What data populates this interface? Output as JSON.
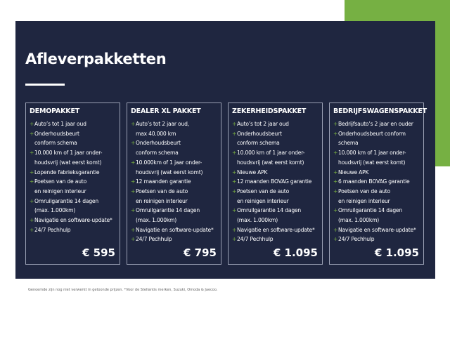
{
  "colors": {
    "accent": "#76b043",
    "panel": "#1f2640"
  },
  "title": "Afleverpakketten",
  "packages": [
    {
      "name": "DEMOPAKKET",
      "price": "€ 595",
      "items": [
        [
          "Auto’s tot 1 jaar oud"
        ],
        [
          "Onderhoudsbeurt",
          "conform schema"
        ],
        [
          "10.000 km of 1 jaar onder-",
          "houdsvrij (wat eerst komt)"
        ],
        [
          "Lopende fabrieksgarantie"
        ],
        [
          "Poetsen van de auto",
          "en reinigen interieur"
        ],
        [
          "Omruilgarantie 14 dagen",
          "(max. 1.000km)"
        ],
        [
          "Navigatie en software-update*"
        ],
        [
          "24/7 Pechhulp"
        ]
      ]
    },
    {
      "name": "DEALER XL PAKKET",
      "price": "€ 795",
      "items": [
        [
          "Auto’s tot 2 jaar oud,",
          "max 40.000 km"
        ],
        [
          "Onderhoudsbeurt",
          "conform schema"
        ],
        [
          "10.000km of 1 jaar onder-",
          "houdsvrij (wat eerst komt)"
        ],
        [
          "12 maanden garantie"
        ],
        [
          "Poetsen van de auto",
          "en reinigen interieur"
        ],
        [
          "Omruilgarantie 14 dagen",
          "(max. 1.000km)"
        ],
        [
          "Navigatie en software-update*"
        ],
        [
          "24/7 Pechhulp"
        ]
      ]
    },
    {
      "name": "ZEKERHEIDSPAKKET",
      "price": "€ 1.095",
      "items": [
        [
          "Auto’s tot 2 jaar oud"
        ],
        [
          "Onderhoudsbeurt",
          "conform schema"
        ],
        [
          "10.000 km of 1 jaar onder-",
          "houdsvrij (wat eerst komt)"
        ],
        [
          "Nieuwe APK"
        ],
        [
          "12 maanden BOVAG garantie"
        ],
        [
          "Poetsen van de auto",
          "en reinigen interieur"
        ],
        [
          "Omruilgarantie 14 dagen",
          "(max. 1.000km)"
        ],
        [
          "Navigatie en software-update*"
        ],
        [
          "24/7 Pechhulp"
        ]
      ]
    },
    {
      "name": "BEDRIJFSWAGENSPAKKET",
      "price": "€ 1.095",
      "items": [
        [
          "Bedrijfsauto’s 2 jaar en ouder"
        ],
        [
          "Onderhoudsbeurt conform",
          "schema"
        ],
        [
          "10.000 km of 1 jaar onder-",
          "houdsvrij (wat eerst komt)"
        ],
        [
          "Nieuwe APK"
        ],
        [
          "6 maanden BOVAG garantie"
        ],
        [
          "Poetsen van de auto",
          "en reinigen interieur"
        ],
        [
          "Omruilgarantie 14 dagen",
          "(max. 1.000km)"
        ],
        [
          "Navigatie en software-update*"
        ],
        [
          "24/7 Pechhulp"
        ]
      ]
    }
  ],
  "footnote": "Genoemde zijn nog niet verwerkt in getoonde prijzen. *Voor de Stellantis merken, Suzuki, Omoda & Jaecoo."
}
